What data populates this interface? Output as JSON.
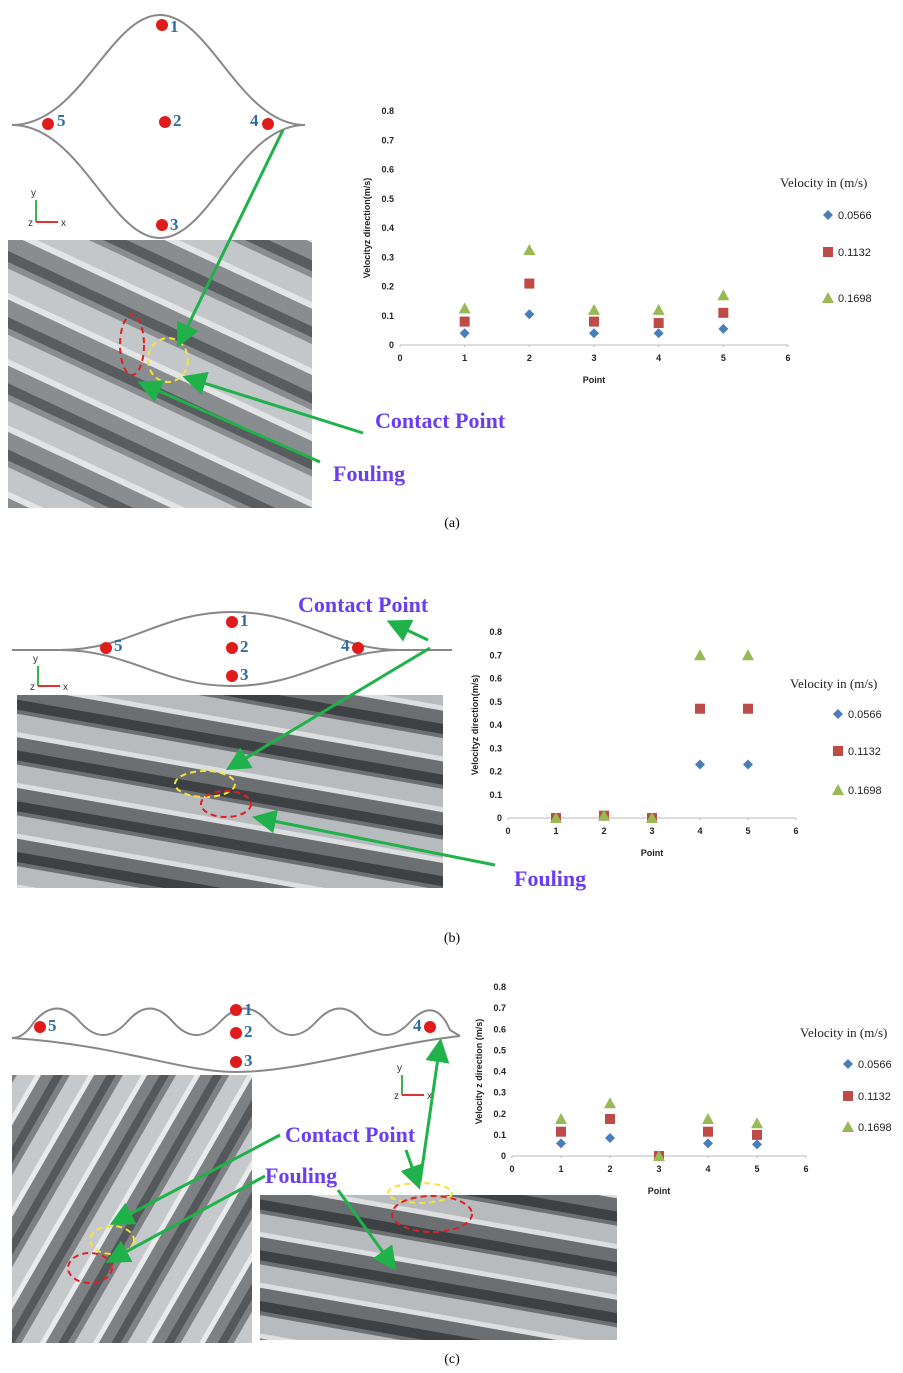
{
  "chart_data": [
    {
      "type": "scatter",
      "xlabel": "Point",
      "ylabel": "Velocityz direction(m/s)",
      "legend_title": "Velocity in (m/s)",
      "x": [
        1,
        2,
        3,
        4,
        5
      ],
      "xlim": [
        0,
        6
      ],
      "xticks": [
        0,
        1,
        2,
        3,
        4,
        5,
        6
      ],
      "ylim": [
        0,
        0.8
      ],
      "yticks": [
        0,
        0.1,
        0.2,
        0.3,
        0.4,
        0.5,
        0.6,
        0.7,
        0.8
      ],
      "grid": false,
      "series": [
        {
          "name": "0.0566",
          "color": "#4a7ebb",
          "marker": "diamond",
          "values": [
            0.04,
            0.105,
            0.04,
            0.04,
            0.055
          ]
        },
        {
          "name": "0.1132",
          "color": "#be4b48",
          "marker": "square",
          "values": [
            0.08,
            0.21,
            0.08,
            0.075,
            0.11
          ]
        },
        {
          "name": "0.1698",
          "color": "#98b954",
          "marker": "triangle",
          "values": [
            0.125,
            0.325,
            0.12,
            0.12,
            0.17
          ]
        }
      ]
    },
    {
      "type": "scatter",
      "xlabel": "Point",
      "ylabel": "Velocityz direction(m/s)",
      "legend_title": "Velocity in (m/s)",
      "x": [
        1,
        2,
        3,
        4,
        5
      ],
      "xlim": [
        0,
        6
      ],
      "xticks": [
        0,
        1,
        2,
        3,
        4,
        5,
        6
      ],
      "ylim": [
        0,
        0.8
      ],
      "yticks": [
        0,
        0.1,
        0.2,
        0.3,
        0.4,
        0.5,
        0.6,
        0.7,
        0.8
      ],
      "grid": false,
      "series": [
        {
          "name": "0.0566",
          "color": "#4a7ebb",
          "marker": "diamond",
          "values": [
            0,
            0.01,
            0,
            0.23,
            0.23
          ]
        },
        {
          "name": "0.1132",
          "color": "#be4b48",
          "marker": "square",
          "values": [
            0,
            0.01,
            0,
            0.47,
            0.47
          ]
        },
        {
          "name": "0.1698",
          "color": "#98b954",
          "marker": "triangle",
          "values": [
            0,
            0.01,
            0,
            0.7,
            0.7
          ]
        }
      ]
    },
    {
      "type": "scatter",
      "xlabel": "Point",
      "ylabel": "Velocity z direction (m/s)",
      "legend_title": "Velocity in (m/s)",
      "x": [
        1,
        2,
        3,
        4,
        5
      ],
      "xlim": [
        0,
        6
      ],
      "xticks": [
        0,
        1,
        2,
        3,
        4,
        5,
        6
      ],
      "ylim": [
        0,
        0.8
      ],
      "yticks": [
        0,
        0.1,
        0.2,
        0.3,
        0.4,
        0.5,
        0.6,
        0.7,
        0.8
      ],
      "grid": false,
      "series": [
        {
          "name": "0.0566",
          "color": "#4a7ebb",
          "marker": "diamond",
          "values": [
            0.06,
            0.085,
            0,
            0.06,
            0.055
          ]
        },
        {
          "name": "0.1132",
          "color": "#be4b48",
          "marker": "square",
          "values": [
            0.115,
            0.175,
            0,
            0.115,
            0.1
          ]
        },
        {
          "name": "0.1698",
          "color": "#98b954",
          "marker": "triangle",
          "values": [
            0.175,
            0.25,
            0,
            0.175,
            0.155
          ]
        }
      ]
    }
  ],
  "panels": [
    {
      "points": [
        "1",
        "2",
        "3",
        "4",
        "5"
      ],
      "axes": [
        "y",
        "z",
        "x"
      ],
      "annotations": [
        "Contact Point",
        "Fouling"
      ],
      "caption": "(a)"
    },
    {
      "points": [
        "1",
        "2",
        "3",
        "4",
        "5"
      ],
      "axes": [
        "y",
        "z",
        "x"
      ],
      "annotations": [
        "Contact Point",
        "Fouling"
      ],
      "caption": "(b)"
    },
    {
      "points": [
        "1",
        "2",
        "3",
        "4",
        "5"
      ],
      "axes": [
        "y",
        "z",
        "x"
      ],
      "annotations": [
        "Contact Point",
        "Fouling"
      ],
      "caption": "(c)"
    }
  ]
}
